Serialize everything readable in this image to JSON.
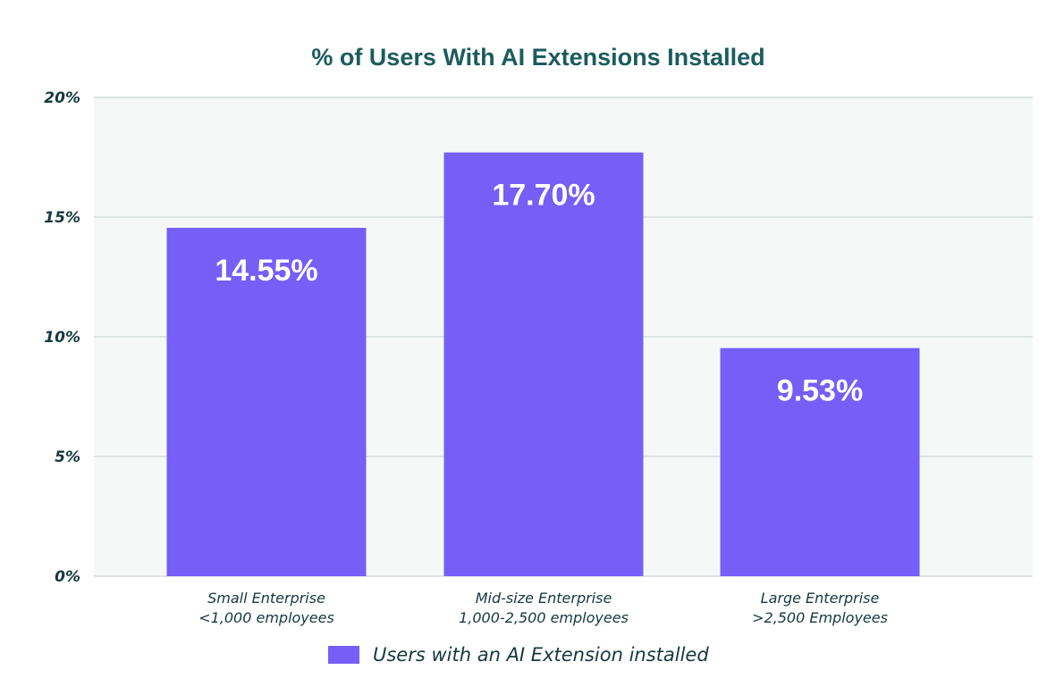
{
  "chart_data": {
    "type": "bar",
    "title": "% of Users With AI Extensions Installed",
    "xlabel": "",
    "ylabel": "",
    "ylim": [
      0,
      20
    ],
    "yticks": [
      0,
      5,
      10,
      15,
      20
    ],
    "ytick_labels": [
      "0%",
      "5%",
      "10%",
      "15%",
      "20%"
    ],
    "grid": true,
    "categories": [
      {
        "line1": "Small Enterprise",
        "line2": "<1,000 employees"
      },
      {
        "line1": "Mid-size Enterprise",
        "line2": "1,000-2,500 employees"
      },
      {
        "line1": "Large Enterprise",
        "line2": ">2,500 Employees"
      }
    ],
    "series": [
      {
        "name": "Users with an AI Extension installed",
        "values": [
          14.55,
          17.7,
          9.53
        ],
        "data_labels": [
          "14.55%",
          "17.70%",
          "9.53%"
        ],
        "color": "#765ef7"
      }
    ],
    "legend": {
      "placement": "bottom-center"
    },
    "colors": {
      "title": "#1c5c5e",
      "axis_text": "#15393d",
      "plot_background": "#f6f8f8",
      "gridline": "#dde3e3",
      "bar": "#765ef7",
      "bar_label": "#ffffff"
    }
  }
}
